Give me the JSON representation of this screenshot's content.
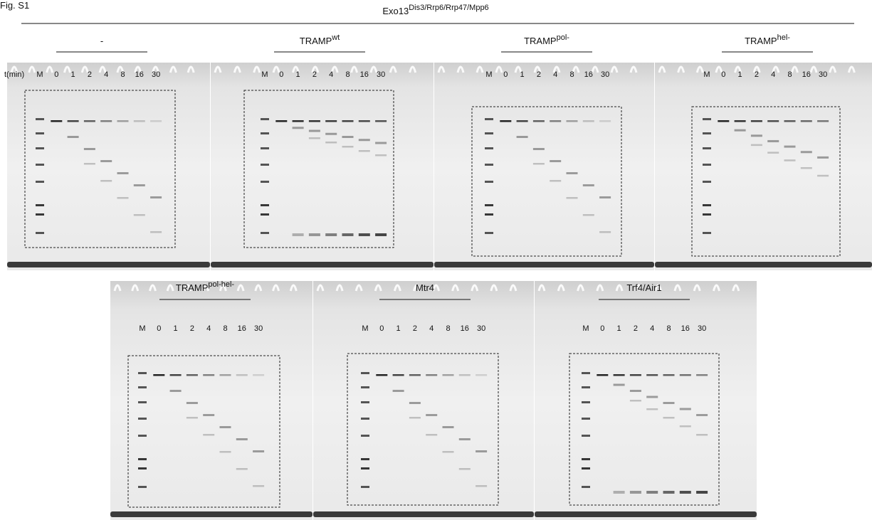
{
  "figure_label": "Fig. S1",
  "header": {
    "title": "Exo13",
    "title_sup": "Dis3/Rrp6/Rrp47/Mpp6"
  },
  "lane_axis_label": "t(min)",
  "lanes": [
    "M",
    "0",
    "1",
    "2",
    "4",
    "8",
    "16",
    "30"
  ],
  "panels": [
    {
      "label": "-"
    },
    {
      "label": "TRAMP",
      "sup": "wt"
    },
    {
      "label": "TRAMP",
      "sup": "pol-"
    },
    {
      "label": "TRAMP",
      "sup": "hel-"
    },
    {
      "label": "TRAMP",
      "sup": "pol-hel-"
    },
    {
      "label": "Mtr4"
    },
    {
      "label": "Trf4/Air1"
    }
  ]
}
